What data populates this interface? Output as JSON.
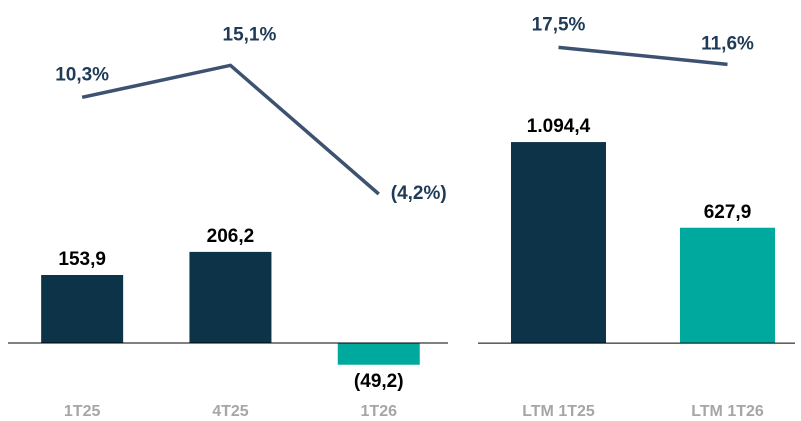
{
  "chart_data": [
    {
      "type": "bar_line",
      "categories": [
        "1T25",
        "4T25",
        "1T26"
      ],
      "series": [
        {
          "type": "bar",
          "colors": [
            "#0d3349",
            "#0d3349",
            "#00a99d"
          ],
          "values": [
            153.9,
            206.2,
            -49.2
          ],
          "value_labels": [
            "153,9",
            "206,2",
            "(49,2)"
          ]
        },
        {
          "type": "line",
          "axis": "y2",
          "color": "#3d5170",
          "values": [
            10.3,
            15.1,
            -4.2
          ],
          "value_labels": [
            "10,3%",
            "15,1%",
            "(4,2%)"
          ]
        }
      ],
      "ylim": [
        -129,
        731
      ],
      "y2lim": [
        -35.1,
        21.9
      ]
    },
    {
      "type": "bar_line",
      "categories": [
        "LTM 1T25",
        "LTM 1T26"
      ],
      "series": [
        {
          "type": "bar",
          "colors": [
            "#0d3349",
            "#00a99d"
          ],
          "values": [
            1094.4,
            627.9
          ],
          "value_labels": [
            "1.094,4",
            "627,9"
          ]
        },
        {
          "type": "line",
          "axis": "y2",
          "color": "#3d5170",
          "values": [
            17.5,
            11.6
          ],
          "value_labels": [
            "17,5%",
            "11,6%"
          ]
        }
      ],
      "ylim": [
        -310,
        1759
      ],
      "y2lim": [
        -105,
        27
      ]
    }
  ]
}
